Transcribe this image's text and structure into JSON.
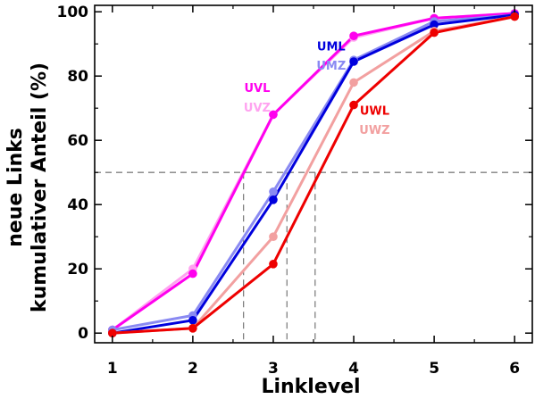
{
  "chart_data": {
    "type": "line",
    "xlabel": "Linklevel",
    "ylabel_lines": [
      "neue Links",
      "kumulativer Anteil (%)"
    ],
    "xlim": [
      0.78,
      6.22
    ],
    "ylim": [
      -3,
      102
    ],
    "x": [
      1,
      2,
      3,
      4,
      5,
      6
    ],
    "xticks": [
      "1",
      "2",
      "3",
      "4",
      "5",
      "6"
    ],
    "yticks": [
      "0",
      "20",
      "40",
      "60",
      "80",
      "100"
    ],
    "grid": false,
    "reference": {
      "y": 50,
      "x_drops": [
        2.63,
        3.17,
        3.52
      ],
      "color": "#808080"
    },
    "series": [
      {
        "name": "UVZ",
        "color": "#FFA3F0",
        "values": [
          1,
          20,
          68,
          92,
          98,
          99.5
        ]
      },
      {
        "name": "UVL",
        "color": "#FF00EE",
        "values": [
          1,
          18.5,
          68,
          92.5,
          98,
          99.5
        ]
      },
      {
        "name": "UMZ",
        "color": "#8A8AF2",
        "values": [
          1,
          5.5,
          44,
          85,
          97,
          99
        ]
      },
      {
        "name": "UML",
        "color": "#0000DD",
        "values": [
          0,
          4,
          41.5,
          84.5,
          96,
          99
        ]
      },
      {
        "name": "UWZ",
        "color": "#F2A0A0",
        "values": [
          0,
          1.5,
          30,
          78,
          94,
          98.5
        ]
      },
      {
        "name": "UWL",
        "color": "#EE0000",
        "values": [
          0,
          1.5,
          21.5,
          71,
          93.5,
          98.5
        ]
      }
    ]
  }
}
